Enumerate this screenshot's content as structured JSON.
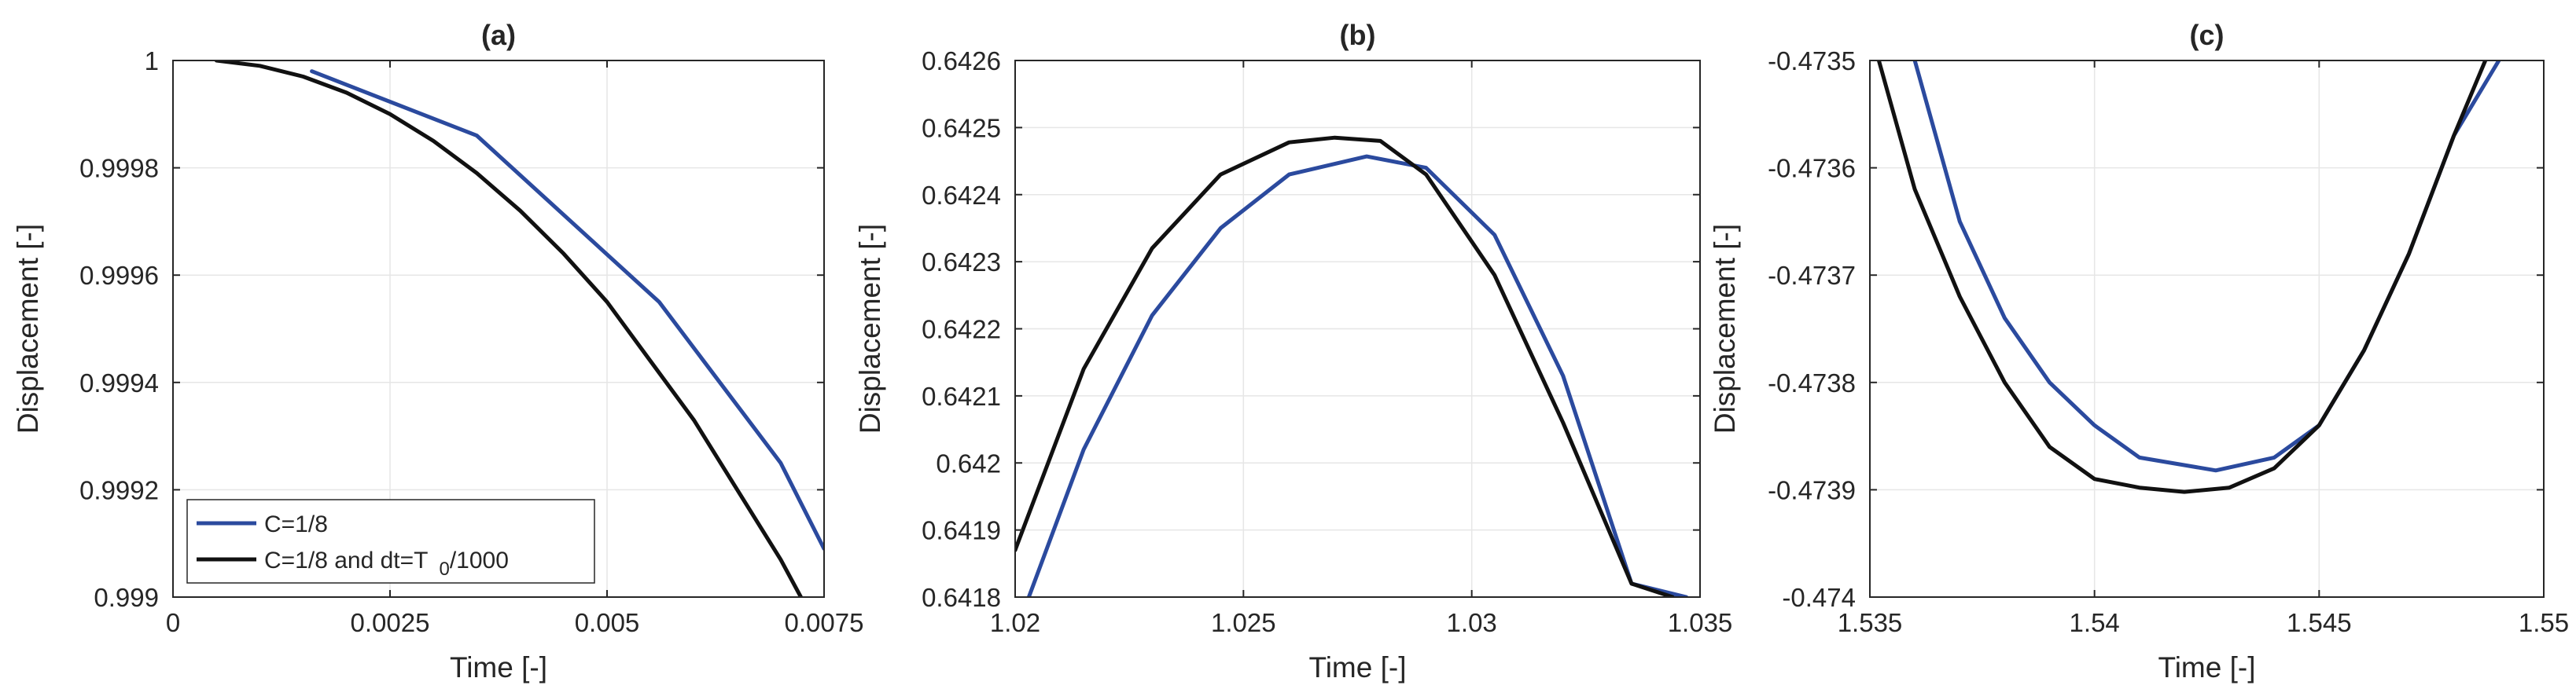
{
  "chart_data": [
    {
      "type": "line",
      "title": "(a)",
      "xlabel": "Time [-]",
      "ylabel": "Displacement [-]",
      "xlim": [
        0,
        0.0075
      ],
      "ylim": [
        0.999,
        1.0
      ],
      "xticks": [
        0,
        0.0025,
        0.005,
        0.0075
      ],
      "xtick_labels": [
        "0",
        "0.0025",
        "0.005",
        "0.0075"
      ],
      "yticks": [
        0.999,
        0.9992,
        0.9994,
        0.9996,
        0.9998,
        1.0
      ],
      "ytick_labels": [
        "0.999",
        "0.9992",
        "0.9994",
        "0.9996",
        "0.9998",
        "1"
      ],
      "grid": true,
      "legend": {
        "location": "bottom-left",
        "entries": [
          {
            "label": "C=1/8",
            "color": "#2b4a9e"
          },
          {
            "label": "C=1/8 and dt=T",
            "subscript": "0",
            "suffix": "/1000",
            "color": "#111111"
          }
        ]
      },
      "series": [
        {
          "name": "C=1/8",
          "color": "#2b4a9e",
          "x": [
            0.0016,
            0.0035,
            0.0056,
            0.007,
            0.0075
          ],
          "y": [
            0.99998,
            0.99986,
            0.99955,
            0.99925,
            0.99909
          ]
        },
        {
          "name": "C=1/8 and dt=T0/1000",
          "color": "#111111",
          "x": [
            0.0005,
            0.001,
            0.0015,
            0.002,
            0.0025,
            0.003,
            0.0035,
            0.004,
            0.0045,
            0.005,
            0.0055,
            0.006,
            0.0065,
            0.007,
            0.0073
          ],
          "y": [
            1.0,
            0.99999,
            0.99997,
            0.99994,
            0.9999,
            0.99985,
            0.99979,
            0.99972,
            0.99964,
            0.99955,
            0.99944,
            0.99933,
            0.9992,
            0.99907,
            0.99898
          ]
        }
      ]
    },
    {
      "type": "line",
      "title": "(b)",
      "xlabel": "Time [-]",
      "ylabel": "Displacement [-]",
      "xlim": [
        1.02,
        1.035
      ],
      "ylim": [
        0.6418,
        0.6426
      ],
      "xticks": [
        1.02,
        1.025,
        1.03,
        1.035
      ],
      "xtick_labels": [
        "1.02",
        "1.025",
        "1.03",
        "1.035"
      ],
      "yticks": [
        0.6418,
        0.6419,
        0.642,
        0.6421,
        0.6422,
        0.6423,
        0.6424,
        0.6425,
        0.6426
      ],
      "ytick_labels": [
        "0.6418",
        "0.6419",
        "0.642",
        "0.6421",
        "0.6422",
        "0.6423",
        "0.6424",
        "0.6425",
        "0.6426"
      ],
      "grid": true,
      "series": [
        {
          "name": "C=1/8",
          "color": "#2b4a9e",
          "x": [
            1.0203,
            1.0215,
            1.023,
            1.0245,
            1.026,
            1.0277,
            1.029,
            1.0305,
            1.032,
            1.0335,
            1.0347
          ],
          "y": [
            0.6418,
            0.64202,
            0.64222,
            0.64235,
            0.64243,
            0.642457,
            0.64244,
            0.64234,
            0.64213,
            0.64182,
            0.6418
          ]
        },
        {
          "name": "C=1/8 and dt=T0/1000",
          "color": "#111111",
          "x": [
            1.02,
            1.0215,
            1.023,
            1.0245,
            1.026,
            1.027,
            1.028,
            1.029,
            1.0305,
            1.032,
            1.0335,
            1.0344
          ],
          "y": [
            0.64187,
            0.64214,
            0.64232,
            0.64243,
            0.642478,
            0.642485,
            0.64248,
            0.64243,
            0.64228,
            0.64206,
            0.64182,
            0.6418
          ]
        }
      ]
    },
    {
      "type": "line",
      "title": "(c)",
      "xlabel": "Time [-]",
      "ylabel": "Displacement [-]",
      "xlim": [
        1.535,
        1.55
      ],
      "ylim": [
        -0.474,
        -0.4735
      ],
      "xticks": [
        1.535,
        1.54,
        1.545,
        1.55
      ],
      "xtick_labels": [
        "1.535",
        "1.54",
        "1.545",
        "1.55"
      ],
      "yticks": [
        -0.474,
        -0.4739,
        -0.4738,
        -0.4737,
        -0.4736,
        -0.4735
      ],
      "ytick_labels": [
        "-0.474",
        "-0.4739",
        "-0.4738",
        "-0.4737",
        "-0.4736",
        "-0.4735"
      ],
      "grid": true,
      "series": [
        {
          "name": "C=1/8",
          "color": "#2b4a9e",
          "x": [
            1.536,
            1.537,
            1.538,
            1.539,
            1.54,
            1.541,
            1.5427,
            1.544,
            1.545,
            1.546,
            1.547,
            1.548,
            1.549
          ],
          "y": [
            -0.4735,
            -0.47365,
            -0.47374,
            -0.4738,
            -0.47384,
            -0.47387,
            -0.473882,
            -0.47387,
            -0.47384,
            -0.47377,
            -0.47368,
            -0.47357,
            -0.4735
          ]
        },
        {
          "name": "C=1/8 and dt=T0/1000",
          "color": "#111111",
          "x": [
            1.5352,
            1.536,
            1.537,
            1.538,
            1.539,
            1.54,
            1.541,
            1.542,
            1.543,
            1.544,
            1.545,
            1.546,
            1.547,
            1.548,
            1.5487
          ],
          "y": [
            -0.4735,
            -0.47362,
            -0.47372,
            -0.4738,
            -0.47386,
            -0.47389,
            -0.473898,
            -0.473902,
            -0.473898,
            -0.47388,
            -0.47384,
            -0.47377,
            -0.47368,
            -0.47357,
            -0.4735
          ]
        }
      ]
    }
  ]
}
